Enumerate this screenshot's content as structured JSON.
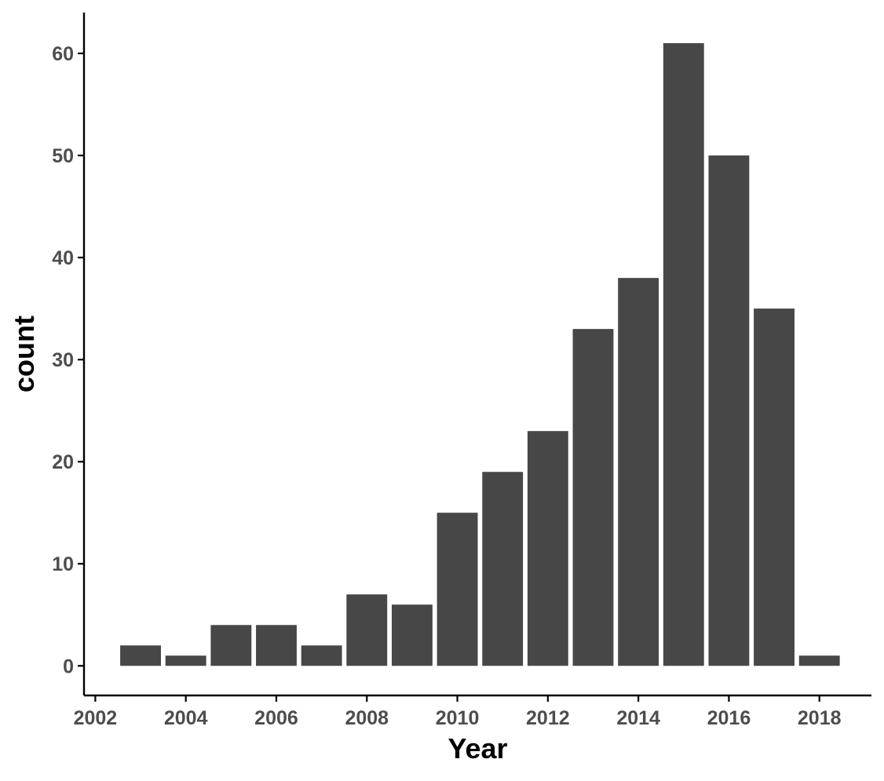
{
  "chart_data": {
    "type": "bar",
    "title": "",
    "xlabel": "Year",
    "ylabel": "count",
    "categories": [
      2003,
      2004,
      2005,
      2006,
      2007,
      2008,
      2009,
      2010,
      2011,
      2012,
      2013,
      2014,
      2015,
      2016,
      2017,
      2018
    ],
    "values": [
      2,
      1,
      4,
      4,
      2,
      7,
      6,
      15,
      19,
      23,
      33,
      38,
      61,
      50,
      35,
      1
    ],
    "xlim": [
      2001.75,
      2019.15
    ],
    "ylim": [
      -2.9,
      64
    ],
    "x_ticks": [
      2002,
      2004,
      2006,
      2008,
      2010,
      2012,
      2014,
      2016,
      2018
    ],
    "x_tick_labels": [
      "2002",
      "2004",
      "2006",
      "2008",
      "2010",
      "2012",
      "2014",
      "2016",
      "2018"
    ],
    "y_ticks": [
      0,
      10,
      20,
      30,
      40,
      50,
      60
    ],
    "y_tick_labels": [
      "0",
      "10",
      "20",
      "30",
      "40",
      "50",
      "60"
    ],
    "bar_width": 0.9,
    "grid": false,
    "legend": "none",
    "colors": {
      "bar": "#474747",
      "axis": "#000000",
      "tick_label": "#4d4d4d",
      "background": "#ffffff"
    }
  }
}
